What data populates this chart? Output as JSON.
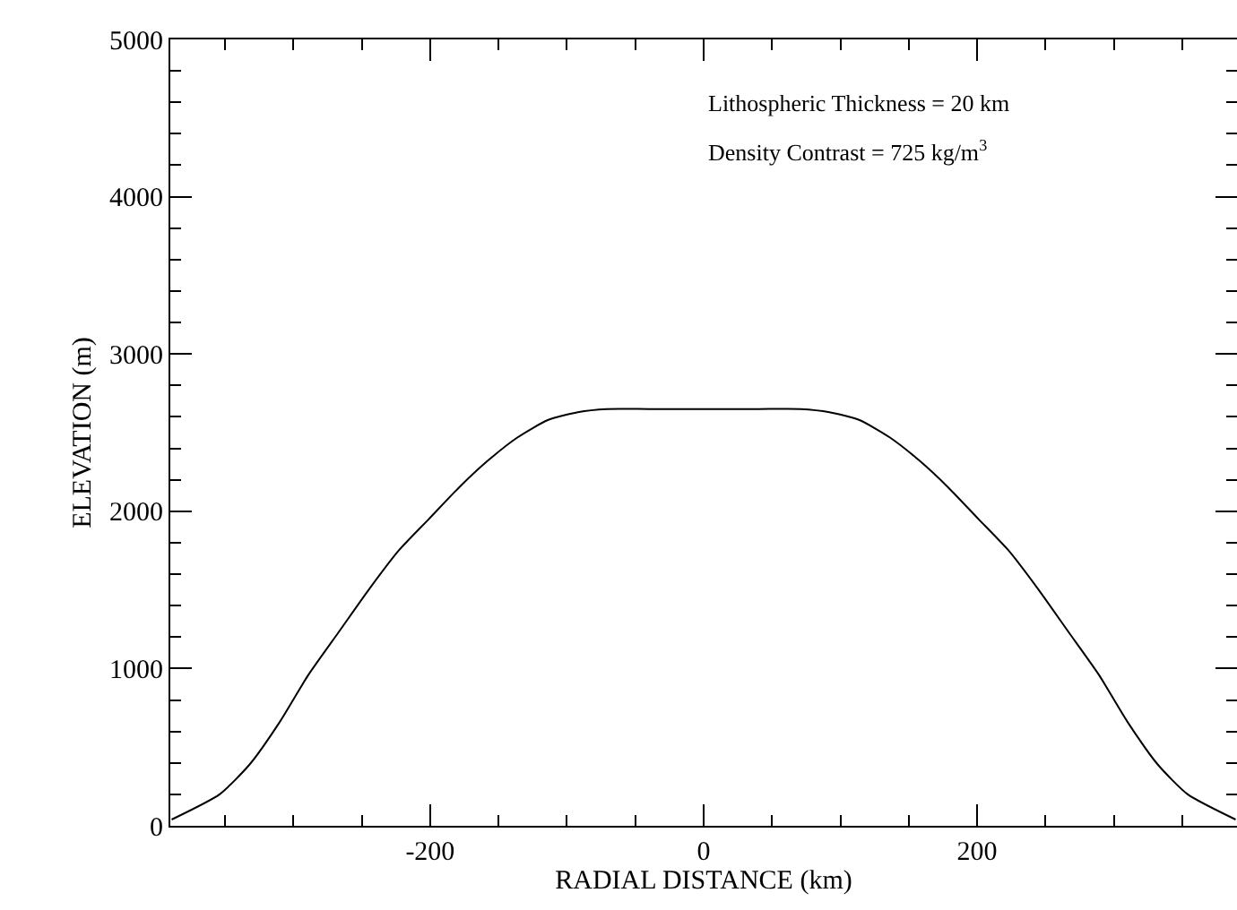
{
  "chart_data": {
    "type": "line",
    "xlabel": "RADIAL DISTANCE (km)",
    "ylabel": "ELEVATION (m)",
    "x": [
      -389,
      -354,
      -332,
      -310,
      -289,
      -267,
      -245,
      -223,
      -201,
      -179,
      -158,
      -136,
      -114,
      -92,
      -71,
      -40,
      0,
      40,
      71,
      92,
      114,
      136,
      158,
      179,
      201,
      223,
      245,
      267,
      289,
      310,
      332,
      354,
      389
    ],
    "series": [
      {
        "color": "#000000",
        "values": [
          40,
          200,
          390,
          660,
          960,
          1230,
          1500,
          1750,
          1950,
          2150,
          2320,
          2470,
          2580,
          2630,
          2650,
          2650,
          2650,
          2650,
          2650,
          2630,
          2580,
          2470,
          2320,
          2150,
          1950,
          1750,
          1500,
          1230,
          960,
          660,
          390,
          200,
          40
        ]
      }
    ],
    "xlim": [
      -390,
      390
    ],
    "ylim": [
      0,
      5000
    ],
    "xticks": [
      {
        "value": -350,
        "label": null
      },
      {
        "value": -300,
        "label": null
      },
      {
        "value": -250,
        "label": null
      },
      -200,
      {
        "value": -150,
        "label": null
      },
      {
        "value": -100,
        "label": null
      },
      {
        "value": -50,
        "label": null
      },
      0,
      {
        "value": 50,
        "label": null
      },
      {
        "value": 100,
        "label": null
      },
      {
        "value": 150,
        "label": null
      },
      200,
      {
        "value": 250,
        "label": null
      },
      {
        "value": 300,
        "label": null
      },
      {
        "value": 350,
        "label": null
      }
    ],
    "yticks": [
      0,
      {
        "value": 200,
        "label": null
      },
      {
        "value": 400,
        "label": null
      },
      {
        "value": 600,
        "label": null
      },
      {
        "value": 800,
        "label": null
      },
      1000,
      {
        "value": 1200,
        "label": null
      },
      {
        "value": 1400,
        "label": null
      },
      {
        "value": 1600,
        "label": null
      },
      {
        "value": 1800,
        "label": null
      },
      2000,
      {
        "value": 2200,
        "label": null
      },
      {
        "value": 2400,
        "label": null
      },
      {
        "value": 2600,
        "label": null
      },
      {
        "value": 2800,
        "label": null
      },
      3000,
      {
        "value": 3200,
        "label": null
      },
      {
        "value": 3400,
        "label": null
      },
      {
        "value": 3600,
        "label": null
      },
      {
        "value": 3800,
        "label": null
      },
      4000,
      {
        "value": 4200,
        "label": null
      },
      {
        "value": 4400,
        "label": null
      },
      {
        "value": 4600,
        "label": null
      },
      {
        "value": 4800,
        "label": null
      },
      5000
    ],
    "annotations": [
      "Lithospheric Thickness = 20 km",
      "Density Contrast = 725 kg/m$^{3}$"
    ],
    "legend": false,
    "marker": "none",
    "line_style": "solid"
  }
}
